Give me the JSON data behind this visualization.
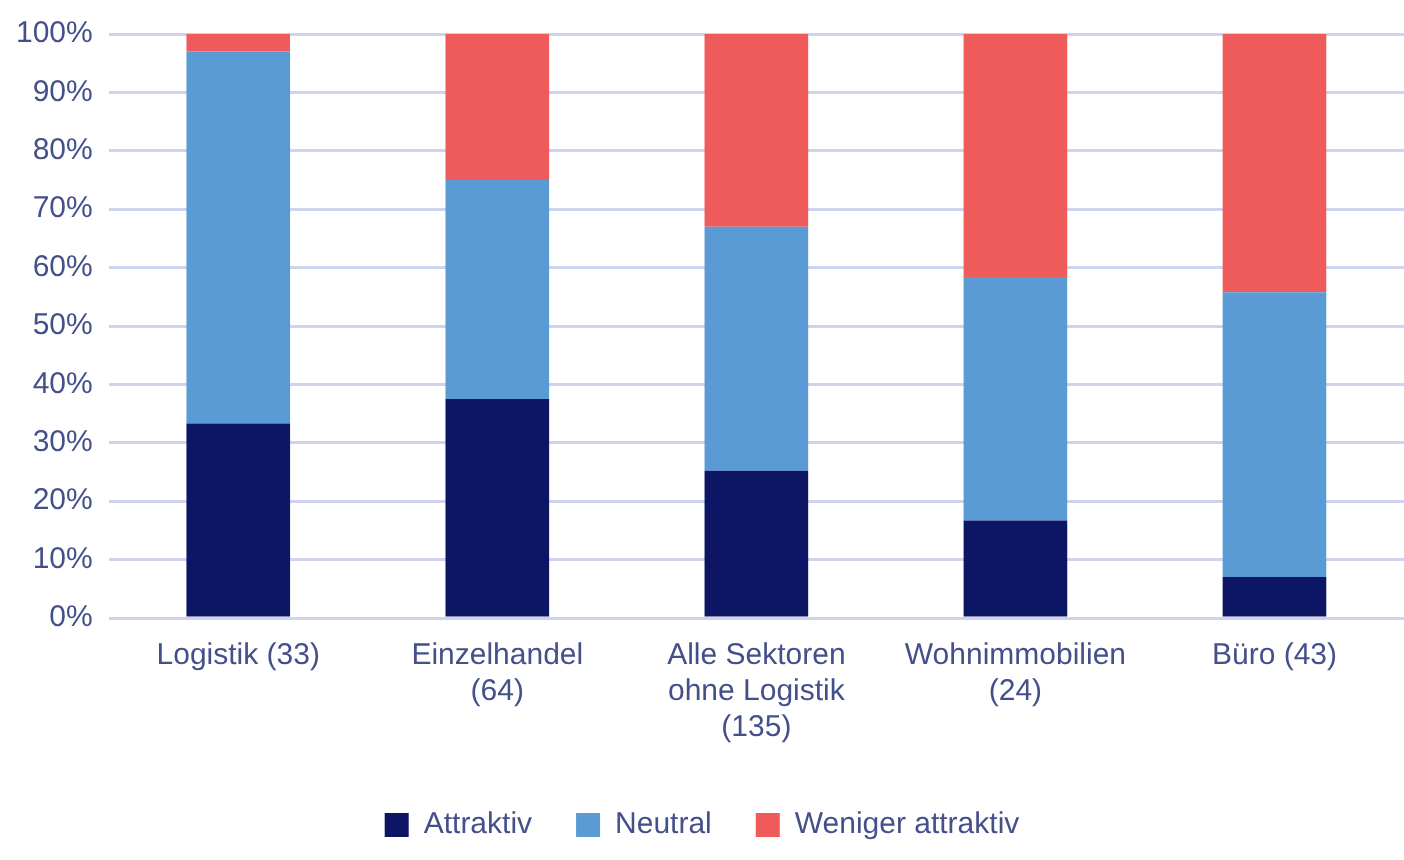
{
  "chart_data": {
    "type": "bar",
    "stacked": true,
    "categories": [
      "Logistik (33)",
      "Einzelhandel (64)",
      "Alle Sektoren ohne Logistik (135)",
      "Wohnimmobilien (24)",
      "Büro (43)"
    ],
    "series": [
      {
        "name": "Attraktiv",
        "color": "#0c1664",
        "values": [
          33.3,
          37.5,
          25.2,
          16.7,
          7.0
        ]
      },
      {
        "name": "Neutral",
        "color": "#5b9bd5",
        "values": [
          63.7,
          37.5,
          41.8,
          41.7,
          48.8
        ]
      },
      {
        "name": "Weniger attraktiv",
        "color": "#ef5a5a",
        "values": [
          3.0,
          25.0,
          33.0,
          41.6,
          44.2
        ]
      }
    ],
    "ylim": [
      0,
      100
    ],
    "yticks": [
      {
        "value": 0,
        "label": "0%"
      },
      {
        "value": 10,
        "label": "10%"
      },
      {
        "value": 20,
        "label": "20%"
      },
      {
        "value": 30,
        "label": "30%"
      },
      {
        "value": 40,
        "label": "40%"
      },
      {
        "value": 50,
        "label": "50%"
      },
      {
        "value": 60,
        "label": "60%"
      },
      {
        "value": 70,
        "label": "70%"
      },
      {
        "value": 80,
        "label": "80%"
      },
      {
        "value": 90,
        "label": "90%"
      },
      {
        "value": 100,
        "label": "100%"
      }
    ],
    "grid": "y",
    "legend": "bottom"
  }
}
